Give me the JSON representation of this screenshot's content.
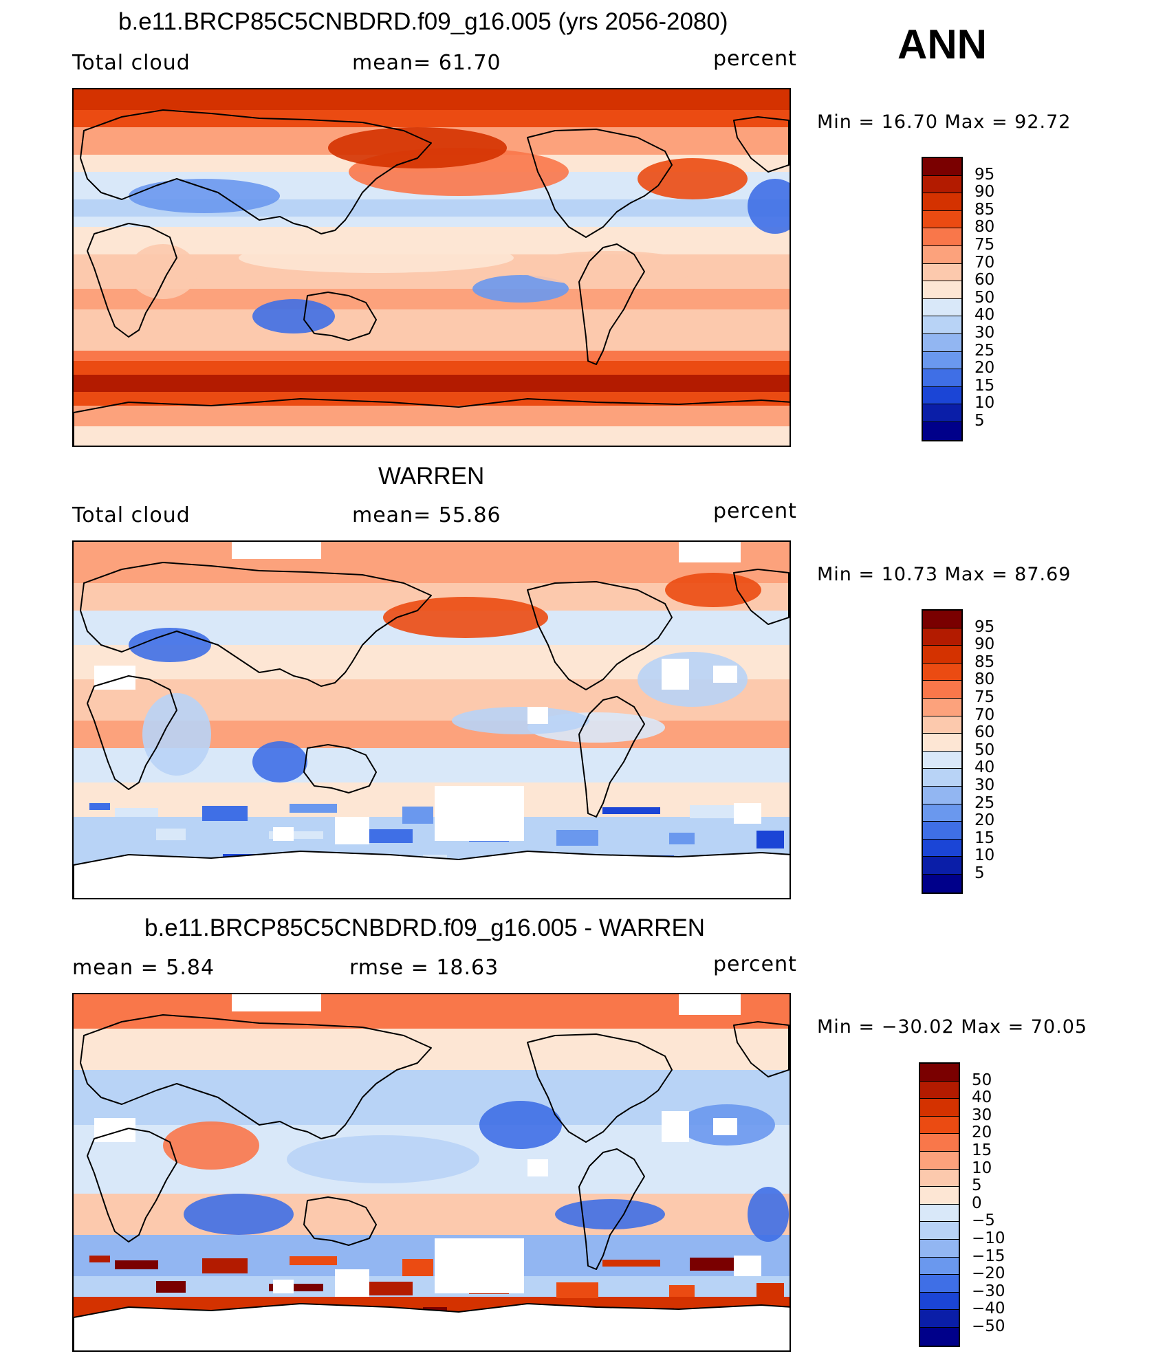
{
  "season": "ANN",
  "panels": [
    {
      "title": "b.e11.BRCP85C5CNBDRD.f09_g16.005 (yrs 2056-2080)",
      "left_label": "Total cloud",
      "mid_label": "mean=   61.70",
      "units": "percent",
      "minmax": "Min =    16.70  Max =    92.72",
      "style": "model",
      "levels": [
        "95",
        "90",
        "85",
        "80",
        "75",
        "70",
        "60",
        "50",
        "40",
        "30",
        "25",
        "20",
        "15",
        "10",
        "5"
      ],
      "colors": [
        "#7a0000",
        "#b31b00",
        "#d43200",
        "#eb4b12",
        "#f9774a",
        "#fca27c",
        "#fcc9ad",
        "#fde6d4",
        "#d9e8f9",
        "#b8d3f6",
        "#92b6f2",
        "#6a98ee",
        "#3f6fe6",
        "#1b45d6",
        "#0a1ea8",
        "#00008a"
      ]
    },
    {
      "title": "WARREN",
      "left_label": "Total cloud",
      "mid_label": "mean=   55.86",
      "units": "percent",
      "minmax": "Min =    10.73  Max =    87.69",
      "style": "obs",
      "levels": [
        "95",
        "90",
        "85",
        "80",
        "75",
        "70",
        "60",
        "50",
        "40",
        "30",
        "25",
        "20",
        "15",
        "10",
        "5"
      ],
      "colors": [
        "#7a0000",
        "#b31b00",
        "#d43200",
        "#eb4b12",
        "#f9774a",
        "#fca27c",
        "#fcc9ad",
        "#fde6d4",
        "#d9e8f9",
        "#b8d3f6",
        "#92b6f2",
        "#6a98ee",
        "#3f6fe6",
        "#1b45d6",
        "#0a1ea8",
        "#00008a"
      ]
    },
    {
      "title": "b.e11.BRCP85C5CNBDRD.f09_g16.005 - WARREN",
      "left_label": "mean =     5.84",
      "mid_label": "rmse  =    18.63",
      "units": "percent",
      "minmax": "Min =  −30.02  Max =    70.05",
      "style": "diff",
      "levels": [
        "50",
        "40",
        "30",
        "20",
        "15",
        "10",
        "5",
        "0",
        "−5",
        "−10",
        "−15",
        "−20",
        "−30",
        "−40",
        "−50"
      ],
      "colors": [
        "#7a0000",
        "#b31b00",
        "#d43200",
        "#eb4b12",
        "#f9774a",
        "#fca27c",
        "#fcc9ad",
        "#fde6d4",
        "#d9e8f9",
        "#b8d3f6",
        "#92b6f2",
        "#6a98ee",
        "#3f6fe6",
        "#1b45d6",
        "#0a1ea8",
        "#00008a"
      ]
    }
  ]
}
